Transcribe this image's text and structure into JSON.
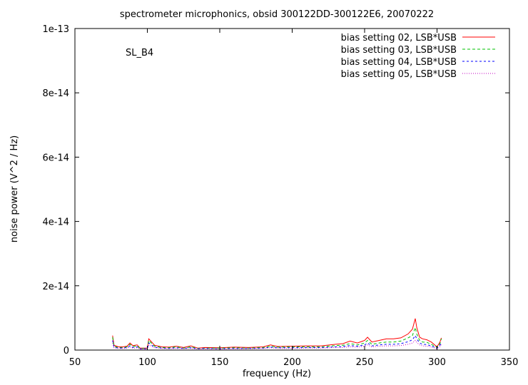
{
  "chart_data": {
    "type": "line",
    "title": "spectrometer microphonics, obsid 300122DD-300122E6, 20070222",
    "xlabel": "frequency (Hz)",
    "ylabel": "noise power (V^2 / Hz)",
    "xlim": [
      50,
      350
    ],
    "ylim": [
      0,
      1e-13
    ],
    "xticks": [
      50,
      100,
      150,
      200,
      250,
      300,
      350
    ],
    "xtick_labels": [
      "50",
      "100",
      "150",
      "200",
      "250",
      "300",
      "350"
    ],
    "yticks": [
      0,
      2e-14,
      4e-14,
      6e-14,
      8e-14,
      1e-13
    ],
    "ytick_labels": [
      "0",
      "2e-14",
      "4e-14",
      "6e-14",
      "8e-14",
      "1e-13"
    ],
    "annotation": "SL_B4",
    "legend_position": "top-right",
    "grid": false,
    "x": [
      76,
      77,
      80,
      83,
      86,
      88,
      90,
      93,
      95,
      100,
      101,
      105,
      110,
      115,
      120,
      125,
      130,
      135,
      140,
      150,
      160,
      170,
      180,
      185,
      190,
      200,
      210,
      220,
      230,
      235,
      240,
      245,
      250,
      252,
      255,
      260,
      265,
      270,
      275,
      280,
      283,
      285,
      286,
      288,
      290,
      293,
      296,
      300,
      302,
      303
    ],
    "series": [
      {
        "name": "bias setting 02, LSB*USB",
        "color": "#ff0000",
        "values": [
          4.5e-15,
          1.5e-15,
          1e-15,
          1e-15,
          1.2e-15,
          2.2e-15,
          1.4e-15,
          1.6e-15,
          6e-16,
          6e-16,
          3.5e-15,
          1.5e-15,
          1e-15,
          9e-16,
          1.2e-15,
          8e-16,
          1.3e-15,
          6e-16,
          8e-16,
          7e-16,
          9e-16,
          8e-16,
          1e-15,
          1.6e-15,
          1.1e-15,
          1.2e-15,
          1.3e-15,
          1.3e-15,
          1.8e-15,
          2e-15,
          2.8e-15,
          2.2e-15,
          3e-15,
          4e-15,
          2.5e-15,
          3e-15,
          3.5e-15,
          3.5e-15,
          3.8e-15,
          5e-15,
          6.5e-15,
          9.8e-15,
          7e-15,
          4e-15,
          3.5e-15,
          3.2e-15,
          2.5e-15,
          1e-15,
          2.5e-15,
          3.8e-15
        ]
      },
      {
        "name": "bias setting 03, LSB*USB",
        "color": "#00c000",
        "values": [
          4e-15,
          1.2e-15,
          8e-16,
          8e-16,
          1e-15,
          1.8e-15,
          1.1e-15,
          1.3e-15,
          5e-16,
          5e-16,
          3e-15,
          1.2e-15,
          8e-16,
          7e-16,
          1e-15,
          6e-16,
          1e-15,
          5e-16,
          6e-16,
          6e-16,
          7e-16,
          6e-16,
          8e-16,
          1.2e-15,
          9e-16,
          1e-15,
          1e-15,
          1e-15,
          1.4e-15,
          1.5e-15,
          2e-15,
          1.6e-15,
          2.2e-15,
          3e-15,
          1.8e-15,
          2.2e-15,
          2.5e-15,
          2.5e-15,
          2.8e-15,
          3.8e-15,
          4.5e-15,
          7e-15,
          5e-15,
          3e-15,
          2.5e-15,
          2.4e-15,
          1.8e-15,
          8e-16,
          2e-15,
          3.5e-15
        ]
      },
      {
        "name": "bias setting 04, LSB*USB",
        "color": "#0000ff",
        "values": [
          3e-15,
          9e-16,
          6e-16,
          6e-16,
          8e-16,
          1.3e-15,
          8e-16,
          1e-15,
          4e-16,
          4e-16,
          2.2e-15,
          9e-16,
          6e-16,
          5e-16,
          7e-16,
          5e-16,
          7e-16,
          4e-16,
          5e-16,
          4e-16,
          5e-16,
          5e-16,
          6e-16,
          9e-16,
          7e-16,
          7e-16,
          8e-16,
          8e-16,
          1e-15,
          1.1e-15,
          1.4e-15,
          1.2e-15,
          1.6e-15,
          2.2e-15,
          1.3e-15,
          1.6e-15,
          1.8e-15,
          1.8e-15,
          2e-15,
          2.6e-15,
          3.2e-15,
          4.5e-15,
          3.5e-15,
          2.2e-15,
          1.8e-15,
          1.7e-15,
          1.3e-15,
          6e-16,
          1.5e-15,
          2.5e-15
        ]
      },
      {
        "name": "bias setting 05, LSB*USB",
        "color": "#c000c0",
        "values": [
          2.2e-15,
          7e-16,
          5e-16,
          5e-16,
          6e-16,
          1e-15,
          6e-16,
          7e-16,
          3e-16,
          3e-16,
          1.6e-15,
          7e-16,
          5e-16,
          4e-16,
          5e-16,
          4e-16,
          5e-16,
          3e-16,
          4e-16,
          3e-16,
          4e-16,
          4e-16,
          5e-16,
          7e-16,
          5e-16,
          5e-16,
          6e-16,
          6e-16,
          8e-16,
          8e-16,
          1e-15,
          9e-16,
          1.2e-15,
          1.6e-15,
          1e-15,
          1.2e-15,
          1.3e-15,
          1.3e-15,
          1.4e-15,
          1.8e-15,
          2.2e-15,
          3e-15,
          2.4e-15,
          1.6e-15,
          1.3e-15,
          1.2e-15,
          1e-15,
          4e-16,
          1.1e-15,
          1.8e-15
        ]
      }
    ]
  }
}
